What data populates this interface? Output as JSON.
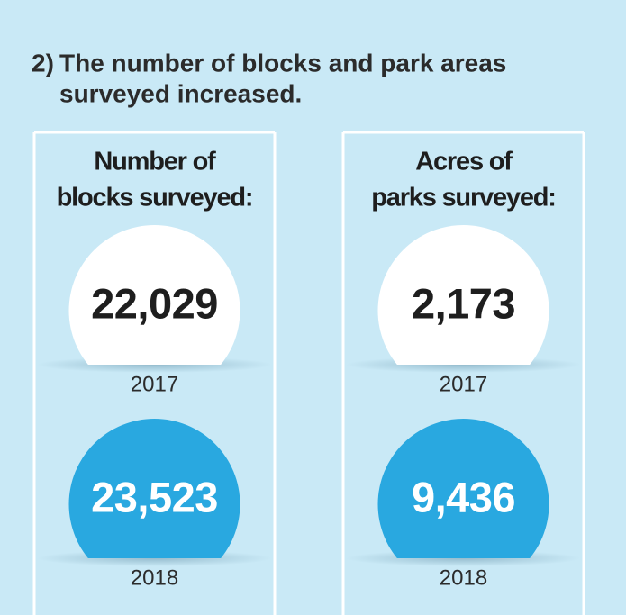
{
  "header": {
    "number": "2)",
    "title_lines": [
      "The number of blocks and park areas",
      "surveyed increased."
    ]
  },
  "panels": [
    {
      "title_lines": [
        "Number of",
        "blocks surveyed:"
      ],
      "items": [
        {
          "value": "22,029",
          "year": "2017"
        },
        {
          "value": "23,523",
          "year": "2018"
        }
      ]
    },
    {
      "title_lines": [
        "Acres of",
        "parks surveyed:"
      ],
      "items": [
        {
          "value": "2,173",
          "year": "2017"
        },
        {
          "value": "9,436",
          "year": "2018"
        }
      ]
    }
  ]
}
